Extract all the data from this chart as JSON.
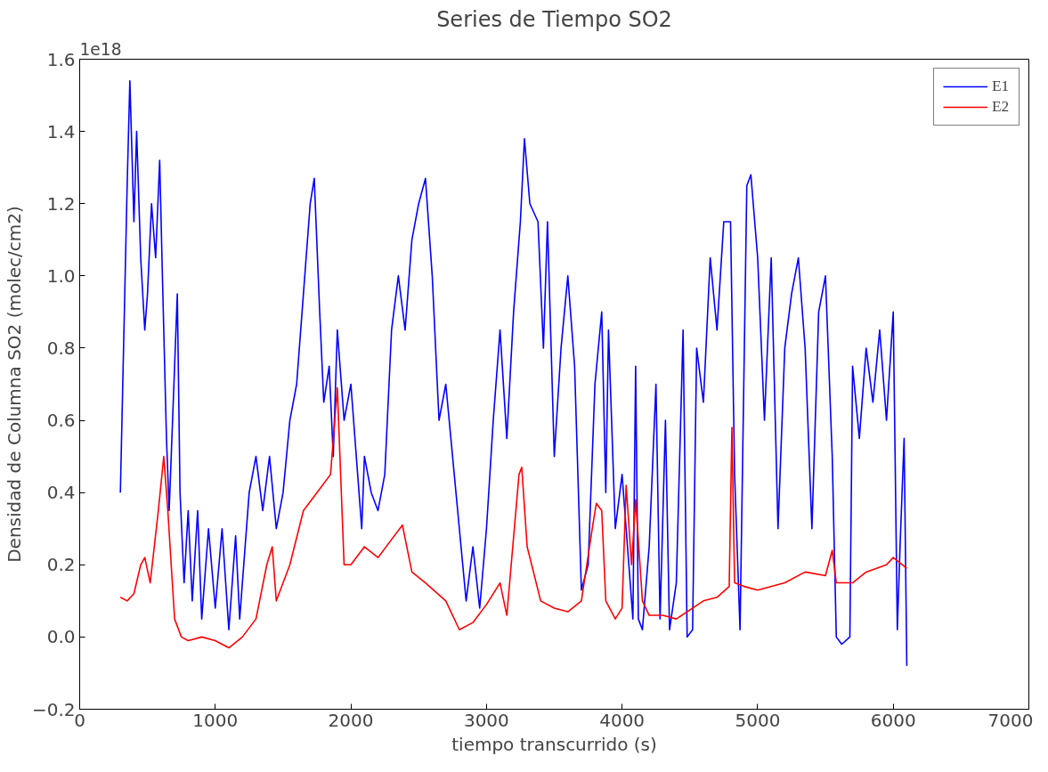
{
  "chart_data": {
    "type": "line",
    "title": "Series de Tiempo SO2",
    "xlabel": "tiempo transcurrido (s)",
    "ylabel": "Densidad de Columna SO2 (molec/cm2)",
    "annotations": [
      "1e18"
    ],
    "xlim": [
      0,
      7000
    ],
    "ylim": [
      -0.2,
      1.6
    ],
    "xticks": [
      0,
      1000,
      2000,
      3000,
      4000,
      5000,
      6000,
      7000
    ],
    "yticks": [
      {
        "value": -0.2,
        "label": "−0.2"
      },
      {
        "value": 0,
        "label": "0.0"
      },
      {
        "value": 0.2,
        "label": "0.2"
      },
      {
        "value": 0.4,
        "label": "0.4"
      },
      {
        "value": 0.6,
        "label": "0.6"
      },
      {
        "value": 0.8,
        "label": "0.8"
      },
      {
        "value": 1.0,
        "label": "1.0"
      },
      {
        "value": 1.2,
        "label": "1.2"
      },
      {
        "value": 1.4,
        "label": "1.4"
      },
      {
        "value": 1.6,
        "label": "1.6"
      }
    ],
    "grid": false,
    "legend": "top right",
    "marker": "none",
    "line_style": "solid",
    "series": [
      {
        "name": "E1",
        "color": "#0000ff",
        "x": [
          300,
          310,
          350,
          370,
          400,
          420,
          450,
          480,
          500,
          530,
          560,
          590,
          610,
          640,
          660,
          700,
          720,
          740,
          770,
          800,
          830,
          870,
          900,
          950,
          1000,
          1050,
          1100,
          1150,
          1180,
          1250,
          1300,
          1350,
          1400,
          1450,
          1500,
          1550,
          1600,
          1650,
          1700,
          1730,
          1770,
          1800,
          1840,
          1870,
          1900,
          1950,
          2000,
          2050,
          2080,
          2100,
          2150,
          2200,
          2250,
          2300,
          2350,
          2400,
          2450,
          2500,
          2550,
          2600,
          2650,
          2700,
          2750,
          2800,
          2850,
          2900,
          2950,
          3000,
          3050,
          3100,
          3150,
          3200,
          3250,
          3280,
          3320,
          3380,
          3420,
          3450,
          3500,
          3550,
          3600,
          3650,
          3700,
          3750,
          3800,
          3850,
          3880,
          3900,
          3950,
          4000,
          4050,
          4080,
          4100,
          4120,
          4150,
          4200,
          4250,
          4280,
          4320,
          4350,
          4400,
          4450,
          4480,
          4520,
          4550,
          4600,
          4650,
          4700,
          4750,
          4800,
          4830,
          4870,
          4920,
          4950,
          5000,
          5050,
          5100,
          5150,
          5200,
          5250,
          5300,
          5350,
          5400,
          5450,
          5500,
          5550,
          5580,
          5620,
          5680,
          5700,
          5750,
          5800,
          5850,
          5900,
          5950,
          6000,
          6030,
          6050,
          6080,
          6100
        ],
        "values": [
          0.4,
          0.57,
          1.25,
          1.54,
          1.15,
          1.4,
          1.05,
          0.85,
          0.95,
          1.2,
          1.05,
          1.32,
          1.0,
          0.55,
          0.35,
          0.75,
          0.95,
          0.4,
          0.15,
          0.35,
          0.1,
          0.35,
          0.05,
          0.3,
          0.08,
          0.3,
          0.02,
          0.28,
          0.05,
          0.4,
          0.5,
          0.35,
          0.5,
          0.3,
          0.4,
          0.6,
          0.7,
          0.95,
          1.2,
          1.27,
          0.9,
          0.65,
          0.75,
          0.5,
          0.85,
          0.6,
          0.7,
          0.45,
          0.3,
          0.5,
          0.4,
          0.35,
          0.45,
          0.85,
          1.0,
          0.85,
          1.1,
          1.2,
          1.27,
          1.0,
          0.6,
          0.7,
          0.5,
          0.3,
          0.1,
          0.25,
          0.08,
          0.3,
          0.6,
          0.85,
          0.55,
          0.9,
          1.15,
          1.38,
          1.2,
          1.15,
          0.8,
          1.15,
          0.5,
          0.8,
          1.0,
          0.75,
          0.13,
          0.2,
          0.7,
          0.9,
          0.4,
          0.85,
          0.3,
          0.45,
          0.2,
          0.05,
          0.75,
          0.05,
          0.02,
          0.25,
          0.7,
          0.05,
          0.6,
          0.02,
          0.15,
          0.85,
          0.0,
          0.02,
          0.8,
          0.65,
          1.05,
          0.85,
          1.15,
          1.15,
          0.45,
          0.02,
          1.25,
          1.28,
          1.05,
          0.6,
          1.05,
          0.3,
          0.8,
          0.95,
          1.05,
          0.8,
          0.3,
          0.9,
          1.0,
          0.5,
          0.0,
          -0.02,
          0.0,
          0.75,
          0.55,
          0.8,
          0.65,
          0.85,
          0.6,
          0.9,
          0.02,
          0.25,
          0.55,
          -0.08
        ]
      },
      {
        "name": "E2",
        "color": "#ff0000",
        "x": [
          300,
          350,
          400,
          450,
          480,
          520,
          580,
          620,
          650,
          700,
          750,
          800,
          900,
          1000,
          1100,
          1200,
          1300,
          1380,
          1420,
          1450,
          1550,
          1650,
          1750,
          1850,
          1900,
          1950,
          2000,
          2100,
          2200,
          2300,
          2380,
          2450,
          2550,
          2700,
          2800,
          2900,
          3000,
          3100,
          3150,
          3240,
          3260,
          3300,
          3400,
          3500,
          3600,
          3700,
          3780,
          3810,
          3850,
          3880,
          3950,
          4000,
          4030,
          4070,
          4100,
          4150,
          4200,
          4300,
          4400,
          4600,
          4700,
          4790,
          4810,
          4830,
          4900,
          5000,
          5200,
          5350,
          5500,
          5550,
          5580,
          5700,
          5800,
          5950,
          6000,
          6100
        ],
        "values": [
          0.11,
          0.1,
          0.12,
          0.2,
          0.22,
          0.15,
          0.35,
          0.5,
          0.35,
          0.05,
          0.0,
          -0.01,
          0.0,
          -0.01,
          -0.03,
          0.0,
          0.05,
          0.2,
          0.25,
          0.1,
          0.2,
          0.35,
          0.4,
          0.45,
          0.69,
          0.2,
          0.2,
          0.25,
          0.22,
          0.27,
          0.31,
          0.18,
          0.15,
          0.1,
          0.02,
          0.04,
          0.09,
          0.15,
          0.06,
          0.45,
          0.47,
          0.25,
          0.1,
          0.08,
          0.07,
          0.1,
          0.3,
          0.37,
          0.35,
          0.1,
          0.05,
          0.08,
          0.42,
          0.2,
          0.38,
          0.1,
          0.06,
          0.06,
          0.05,
          0.1,
          0.11,
          0.14,
          0.58,
          0.15,
          0.14,
          0.13,
          0.15,
          0.18,
          0.17,
          0.24,
          0.15,
          0.15,
          0.18,
          0.2,
          0.22,
          0.19
        ]
      }
    ]
  }
}
